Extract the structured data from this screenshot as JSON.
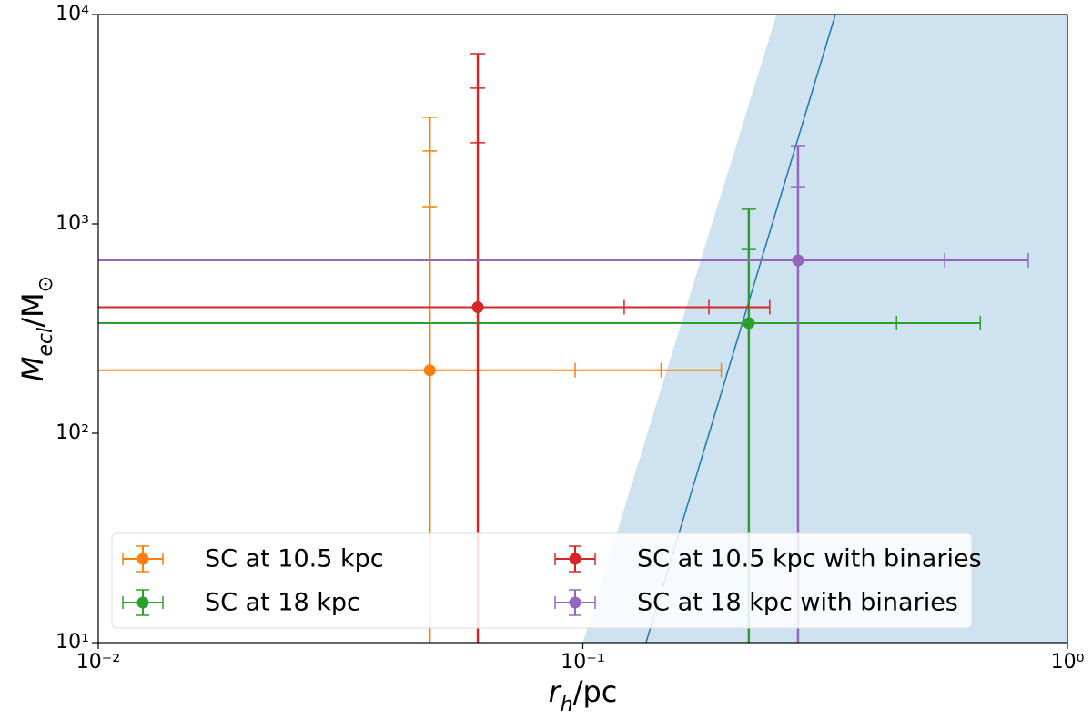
{
  "chart_data": {
    "type": "errorbar",
    "xlabel": [
      {
        "text": "r",
        "sub": false
      },
      {
        "text": "h",
        "sub": true
      },
      {
        "text": "/pc",
        "sub": false
      }
    ],
    "ylabel": [
      {
        "text": "M",
        "sub": false
      },
      {
        "text": "ecl",
        "sub": true
      },
      {
        "text": "/M",
        "sub": false
      },
      {
        "text": "⊙",
        "sub": true
      }
    ],
    "xscale": "log",
    "yscale": "log",
    "xlim": [
      0.01,
      1
    ],
    "ylim": [
      10,
      10000
    ],
    "xticks": [
      {
        "value": 0.01,
        "label": "10⁻²"
      },
      {
        "value": 0.1,
        "label": "10⁻¹"
      },
      {
        "value": 1,
        "label": "10⁰"
      }
    ],
    "yticks": [
      {
        "value": 10,
        "label": "10¹"
      },
      {
        "value": 100,
        "label": "10²"
      },
      {
        "value": 1000,
        "label": "10³"
      },
      {
        "value": 10000,
        "label": "10⁴"
      }
    ],
    "region": {
      "color": "#cfe2f0",
      "x": [
        0.1,
        0.251,
        1,
        1
      ],
      "y": [
        10,
        10000,
        10000,
        10
      ]
    },
    "line": {
      "color": "#1f77b4",
      "x": [
        0.135,
        0.332
      ],
      "y": [
        10,
        10000
      ]
    },
    "legend": {
      "loc": "lower left",
      "ncol": 2
    },
    "series": [
      {
        "name": "SC at 10.5 kpc",
        "color": "#ff7f0e",
        "x": 0.0483,
        "y": 200,
        "x_caps": [
          0.0964,
          0.145,
          0.193
        ],
        "y_caps": [
          1210,
          2230,
          3230
        ]
      },
      {
        "name": "SC at 18 kpc",
        "color": "#2ca02c",
        "x": 0.22,
        "y": 336,
        "x_caps": [
          0.444,
          0.661
        ],
        "y_caps": [
          755,
          1175
        ]
      },
      {
        "name": "SC at 10.5 kpc with binaries",
        "color": "#d62728",
        "x": 0.0607,
        "y": 400,
        "x_caps": [
          0.1217,
          0.182,
          0.243
        ],
        "y_caps": [
          2440,
          4450,
          6500
        ]
      },
      {
        "name": "SC at 18 kpc with binaries",
        "color": "#9467bd",
        "x": 0.278,
        "y": 670,
        "x_caps": [
          0.558,
          0.83
        ],
        "y_caps": [
          1505,
          2365
        ]
      }
    ]
  }
}
